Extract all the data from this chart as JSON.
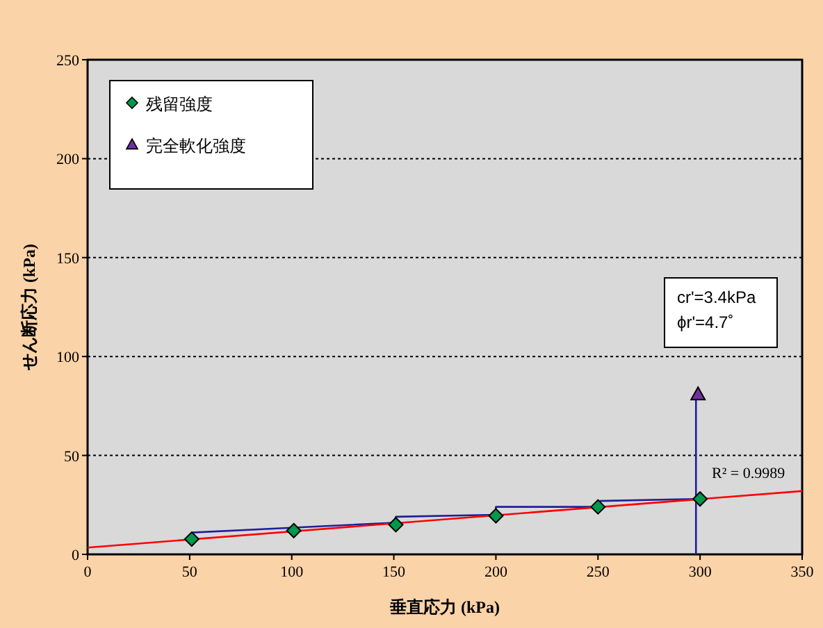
{
  "chart_data": {
    "type": "scatter",
    "xlabel": "垂直応力 (kPa)",
    "ylabel": "せん断応力 (kPa)",
    "xlim": [
      0,
      350
    ],
    "ylim": [
      0,
      250
    ],
    "xticks": [
      0,
      50,
      100,
      150,
      200,
      250,
      300,
      350
    ],
    "yticks": [
      0,
      50,
      100,
      150,
      200,
      250
    ],
    "grid": "y",
    "legend": "top left",
    "series": [
      {
        "type": "line",
        "color": "#1f1f99",
        "marker": "none",
        "x": [
          51,
          150,
          151,
          200,
          200,
          250,
          251,
          298
        ],
        "values": [
          11,
          16,
          19,
          20,
          24,
          24,
          27,
          28
        ]
      },
      {
        "type": "line",
        "color": "#1f1f99",
        "marker": "none",
        "x": [
          298,
          298
        ],
        "values": [
          0,
          81
        ]
      },
      {
        "type": "line",
        "color": "#ff0000",
        "marker": "none",
        "x": [
          0,
          350
        ],
        "values": [
          3.4,
          32
        ]
      },
      {
        "name": "残留強度",
        "color": "#00994c",
        "marker": "diamond",
        "x": [
          51,
          101,
          151,
          200,
          250,
          300
        ],
        "values": [
          7.7,
          12,
          15,
          19.5,
          24,
          28
        ]
      },
      {
        "name": "完全軟化強度",
        "color": "#7030a0",
        "marker": "triangle",
        "x": [
          299
        ],
        "values": [
          81
        ]
      }
    ],
    "annotations": [
      "R² = 0.9989",
      "cr'=3.4kPa",
      "ϕr'=4.7˚"
    ]
  }
}
